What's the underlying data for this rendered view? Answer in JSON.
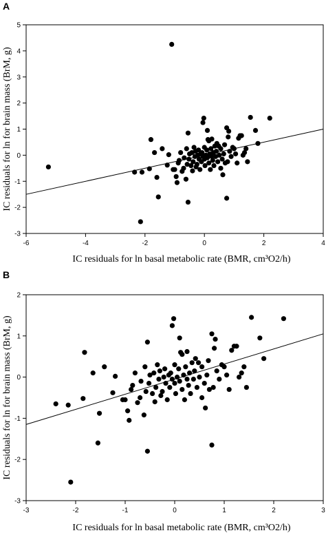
{
  "chart_data": [
    {
      "type": "scatter",
      "panel_label": "A",
      "title": "",
      "xlabel": "IC residuals for ln basal metabolic rate (BMR, cm³O2/h)",
      "ylabel": "IC residuals for ln for brain mass (BrM, g)",
      "xlim": [
        -6,
        4
      ],
      "ylim": [
        -3,
        5
      ],
      "xticks": [
        -6,
        -4,
        -2,
        0,
        2,
        4
      ],
      "yticks": [
        -3,
        -2,
        -1,
        0,
        1,
        2,
        3,
        4,
        5
      ],
      "grid": false,
      "legend": "none",
      "regression_line": [
        [
          -6,
          -1.5
        ],
        [
          4,
          1.0
        ]
      ],
      "points": [
        [
          -5.25,
          -0.45
        ],
        [
          -2.35,
          -0.65
        ],
        [
          -2.15,
          -2.55
        ],
        [
          -2.1,
          -0.65
        ],
        [
          -1.85,
          -0.52
        ],
        [
          -1.8,
          0.6
        ],
        [
          -1.68,
          0.1
        ],
        [
          -1.6,
          -0.85
        ],
        [
          -1.55,
          -1.6
        ],
        [
          -1.42,
          0.25
        ],
        [
          -1.25,
          -0.38
        ],
        [
          -1.2,
          0.02
        ],
        [
          -1.1,
          4.25
        ],
        [
          -1.05,
          -0.55
        ],
        [
          -1.0,
          -0.55
        ],
        [
          -0.95,
          -0.82
        ],
        [
          -0.92,
          -1.05
        ],
        [
          -0.88,
          -0.3
        ],
        [
          -0.85,
          -0.2
        ],
        [
          -0.8,
          0.1
        ],
        [
          -0.75,
          -0.62
        ],
        [
          -0.7,
          -0.5
        ],
        [
          -0.68,
          -0.1
        ],
        [
          -0.62,
          -0.92
        ],
        [
          -0.6,
          0.25
        ],
        [
          -0.58,
          -0.35
        ],
        [
          -0.55,
          0.85
        ],
        [
          -0.55,
          -1.8
        ],
        [
          -0.52,
          -0.15
        ],
        [
          -0.5,
          0.05
        ],
        [
          -0.45,
          -0.4
        ],
        [
          -0.42,
          0.1
        ],
        [
          -0.4,
          -0.6
        ],
        [
          -0.38,
          -0.25
        ],
        [
          -0.35,
          0.3
        ],
        [
          -0.32,
          -0.05
        ],
        [
          -0.3,
          0.15
        ],
        [
          -0.28,
          -0.45
        ],
        [
          -0.25,
          -0.35
        ],
        [
          -0.22,
          0.0
        ],
        [
          -0.2,
          0.2
        ],
        [
          -0.18,
          -0.15
        ],
        [
          -0.15,
          -0.55
        ],
        [
          -0.12,
          0.05
        ],
        [
          -0.1,
          -0.25
        ],
        [
          -0.08,
          0.1
        ],
        [
          -0.05,
          -0.05
        ],
        [
          -0.05,
          1.25
        ],
        [
          -0.02,
          1.42
        ],
        [
          0.0,
          -0.15
        ],
        [
          0.0,
          0.3
        ],
        [
          0.02,
          -0.4
        ],
        [
          0.05,
          0.0
        ],
        [
          0.08,
          0.2
        ],
        [
          0.1,
          -0.1
        ],
        [
          0.1,
          0.95
        ],
        [
          0.12,
          0.6
        ],
        [
          0.15,
          -0.3
        ],
        [
          0.15,
          0.55
        ],
        [
          0.18,
          0.05
        ],
        [
          0.2,
          -0.55
        ],
        [
          0.22,
          0.25
        ],
        [
          0.25,
          -0.05
        ],
        [
          0.25,
          0.62
        ],
        [
          0.28,
          -0.2
        ],
        [
          0.3,
          0.1
        ],
        [
          0.32,
          -0.4
        ],
        [
          0.35,
          0.35
        ],
        [
          0.38,
          -0.05
        ],
        [
          0.4,
          0.15
        ],
        [
          0.42,
          0.45
        ],
        [
          0.45,
          -0.25
        ],
        [
          0.48,
          0.35
        ],
        [
          0.5,
          0.0
        ],
        [
          0.55,
          -0.5
        ],
        [
          0.55,
          0.25
        ],
        [
          0.6,
          -0.15
        ],
        [
          0.62,
          -0.75
        ],
        [
          0.65,
          0.05
        ],
        [
          0.68,
          0.4
        ],
        [
          0.7,
          -0.3
        ],
        [
          0.75,
          1.05
        ],
        [
          0.75,
          -1.65
        ],
        [
          0.78,
          -0.25
        ],
        [
          0.8,
          0.7
        ],
        [
          0.82,
          0.92
        ],
        [
          0.85,
          0.15
        ],
        [
          0.9,
          -0.05
        ],
        [
          0.95,
          0.3
        ],
        [
          1.0,
          0.25
        ],
        [
          1.05,
          0.05
        ],
        [
          1.1,
          -0.3
        ],
        [
          1.15,
          0.65
        ],
        [
          1.2,
          0.75
        ],
        [
          1.25,
          0.75
        ],
        [
          1.3,
          0.0
        ],
        [
          1.35,
          0.1
        ],
        [
          1.4,
          0.25
        ],
        [
          1.45,
          -0.25
        ],
        [
          1.55,
          1.45
        ],
        [
          1.72,
          0.95
        ],
        [
          1.8,
          0.45
        ],
        [
          2.2,
          1.42
        ]
      ]
    },
    {
      "type": "scatter",
      "panel_label": "B",
      "title": "",
      "xlabel": "IC residuals for ln basal metabolic rate (BMR, cm³O2/h)",
      "ylabel": "IC residuals for ln for brain mass (BrM, g)",
      "xlim": [
        -3,
        3
      ],
      "ylim": [
        -3,
        2
      ],
      "xticks": [
        -3,
        -2,
        -1,
        0,
        1,
        2,
        3
      ],
      "yticks": [
        -3,
        -2,
        -1,
        0,
        1,
        2
      ],
      "grid": false,
      "legend": "none",
      "regression_line": [
        [
          -3,
          -1.15
        ],
        [
          3,
          1.05
        ]
      ],
      "points": [
        [
          -2.4,
          -0.65
        ],
        [
          -2.15,
          -0.68
        ],
        [
          -2.1,
          -2.55
        ],
        [
          -1.85,
          -0.52
        ],
        [
          -1.82,
          0.6
        ],
        [
          -1.65,
          0.1
        ],
        [
          -1.52,
          -0.88
        ],
        [
          -1.55,
          -1.6
        ],
        [
          -1.42,
          0.25
        ],
        [
          -1.25,
          -0.38
        ],
        [
          -1.2,
          0.02
        ],
        [
          -1.05,
          -0.55
        ],
        [
          -1.0,
          -0.55
        ],
        [
          -0.95,
          -0.82
        ],
        [
          -0.92,
          -1.05
        ],
        [
          -0.88,
          -0.3
        ],
        [
          -0.85,
          -0.2
        ],
        [
          -0.8,
          0.1
        ],
        [
          -0.75,
          -0.62
        ],
        [
          -0.7,
          -0.5
        ],
        [
          -0.68,
          -0.1
        ],
        [
          -0.62,
          -0.92
        ],
        [
          -0.6,
          0.25
        ],
        [
          -0.58,
          -0.35
        ],
        [
          -0.55,
          0.85
        ],
        [
          -0.55,
          -1.8
        ],
        [
          -0.52,
          -0.15
        ],
        [
          -0.5,
          0.05
        ],
        [
          -0.45,
          -0.4
        ],
        [
          -0.42,
          0.1
        ],
        [
          -0.4,
          -0.6
        ],
        [
          -0.38,
          -0.25
        ],
        [
          -0.35,
          0.3
        ],
        [
          -0.32,
          -0.05
        ],
        [
          -0.3,
          0.15
        ],
        [
          -0.28,
          -0.45
        ],
        [
          -0.25,
          -0.35
        ],
        [
          -0.22,
          0.0
        ],
        [
          -0.2,
          0.2
        ],
        [
          -0.18,
          -0.15
        ],
        [
          -0.15,
          -0.55
        ],
        [
          -0.12,
          0.05
        ],
        [
          -0.1,
          -0.25
        ],
        [
          -0.08,
          0.1
        ],
        [
          -0.05,
          -0.05
        ],
        [
          -0.05,
          1.25
        ],
        [
          -0.02,
          1.42
        ],
        [
          0.0,
          -0.15
        ],
        [
          0.0,
          0.3
        ],
        [
          0.02,
          -0.4
        ],
        [
          0.05,
          0.0
        ],
        [
          0.08,
          0.2
        ],
        [
          0.1,
          -0.1
        ],
        [
          0.1,
          0.95
        ],
        [
          0.12,
          0.6
        ],
        [
          0.15,
          -0.3
        ],
        [
          0.15,
          0.55
        ],
        [
          0.18,
          0.05
        ],
        [
          0.2,
          -0.55
        ],
        [
          0.22,
          0.25
        ],
        [
          0.25,
          -0.05
        ],
        [
          0.25,
          0.62
        ],
        [
          0.28,
          -0.2
        ],
        [
          0.3,
          0.1
        ],
        [
          0.32,
          -0.4
        ],
        [
          0.35,
          0.35
        ],
        [
          0.38,
          -0.05
        ],
        [
          0.4,
          0.15
        ],
        [
          0.42,
          0.45
        ],
        [
          0.45,
          -0.25
        ],
        [
          0.48,
          0.35
        ],
        [
          0.5,
          0.0
        ],
        [
          0.55,
          -0.5
        ],
        [
          0.55,
          0.25
        ],
        [
          0.6,
          -0.15
        ],
        [
          0.62,
          -0.75
        ],
        [
          0.65,
          0.05
        ],
        [
          0.68,
          0.4
        ],
        [
          0.7,
          -0.3
        ],
        [
          0.75,
          1.05
        ],
        [
          0.75,
          -1.65
        ],
        [
          0.78,
          -0.25
        ],
        [
          0.8,
          0.7
        ],
        [
          0.82,
          0.92
        ],
        [
          0.85,
          0.15
        ],
        [
          0.9,
          -0.05
        ],
        [
          0.95,
          0.3
        ],
        [
          1.0,
          0.25
        ],
        [
          1.05,
          0.05
        ],
        [
          1.1,
          -0.3
        ],
        [
          1.15,
          0.65
        ],
        [
          1.2,
          0.75
        ],
        [
          1.25,
          0.75
        ],
        [
          1.3,
          0.0
        ],
        [
          1.35,
          0.1
        ],
        [
          1.4,
          0.25
        ],
        [
          1.45,
          -0.25
        ],
        [
          1.55,
          1.45
        ],
        [
          1.72,
          0.95
        ],
        [
          1.8,
          0.45
        ],
        [
          2.2,
          1.42
        ]
      ]
    }
  ]
}
